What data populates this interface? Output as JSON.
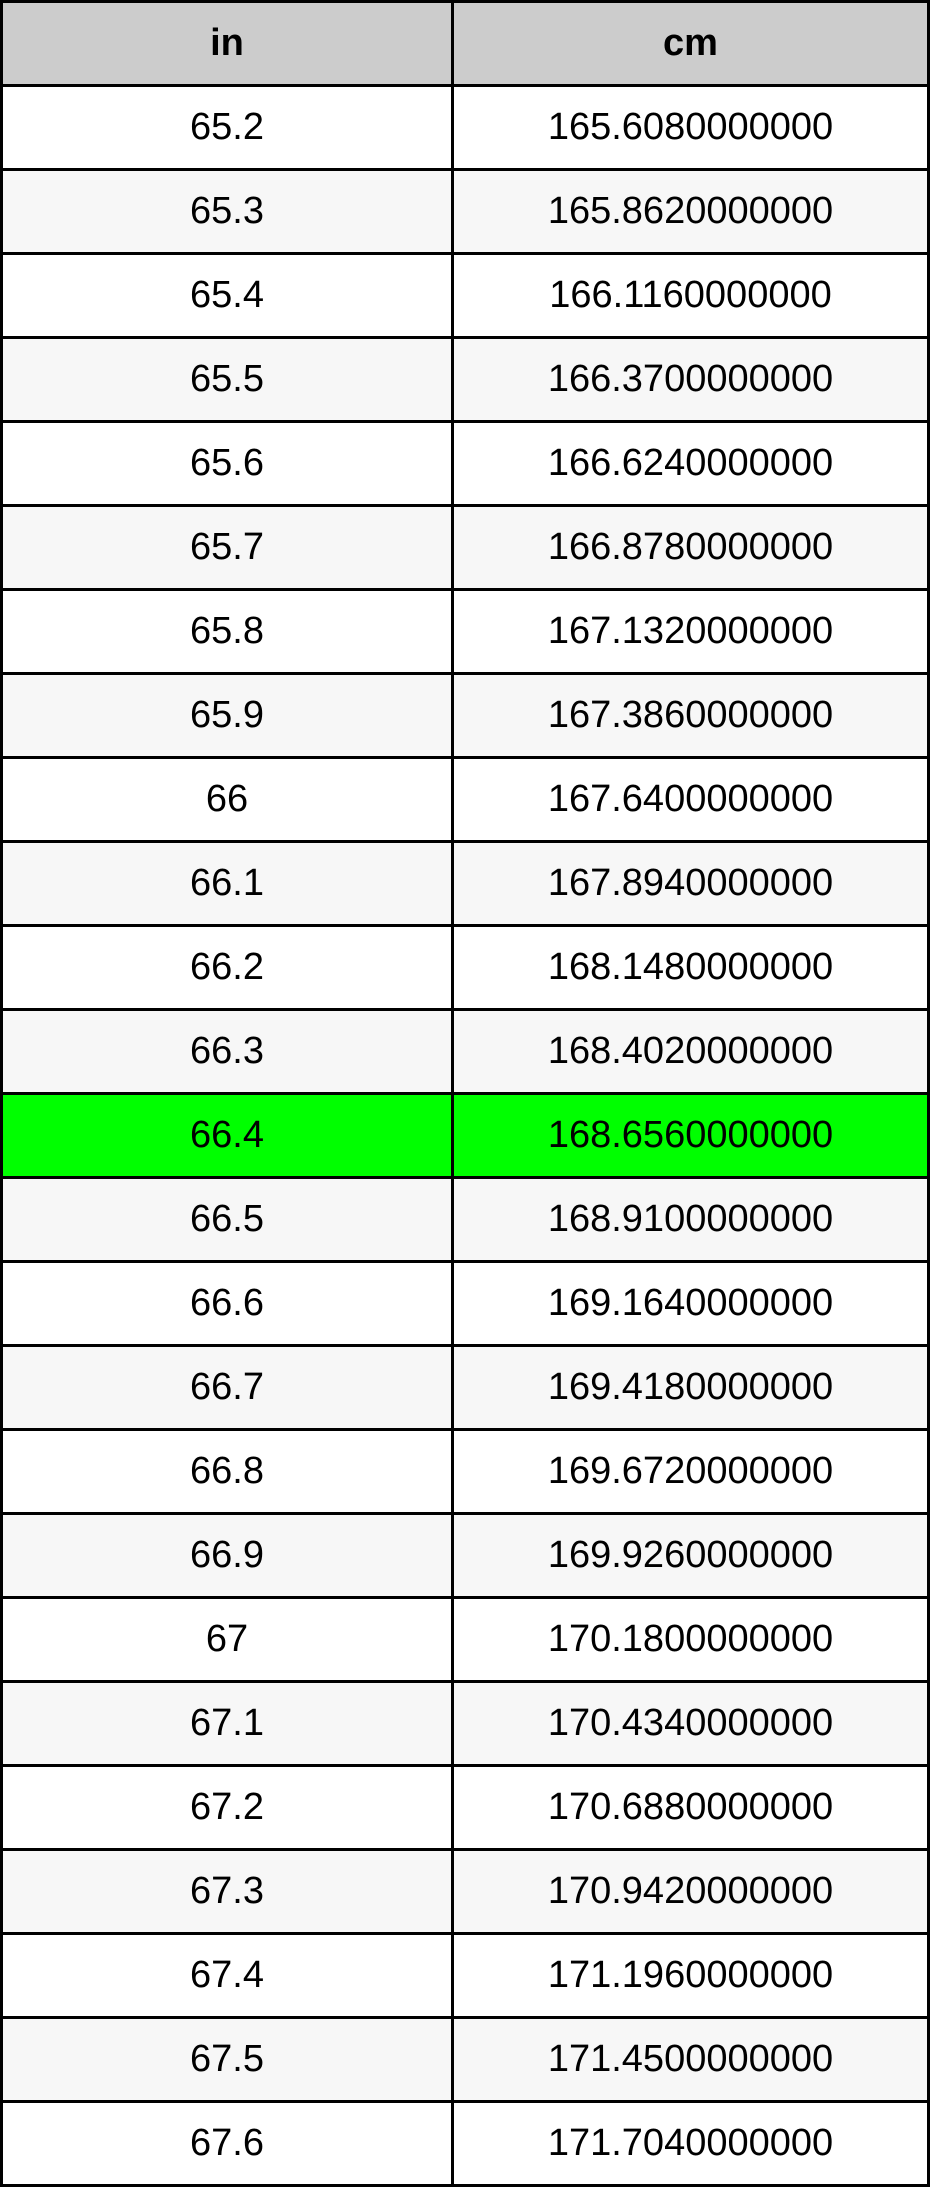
{
  "table": {
    "headers": [
      "in",
      "cm"
    ],
    "highlight_color": "#00ff00",
    "highlighted_row": 12,
    "rows": [
      [
        "65.2",
        "165.6080000000"
      ],
      [
        "65.3",
        "165.8620000000"
      ],
      [
        "65.4",
        "166.1160000000"
      ],
      [
        "65.5",
        "166.3700000000"
      ],
      [
        "65.6",
        "166.6240000000"
      ],
      [
        "65.7",
        "166.8780000000"
      ],
      [
        "65.8",
        "167.1320000000"
      ],
      [
        "65.9",
        "167.3860000000"
      ],
      [
        "66",
        "167.6400000000"
      ],
      [
        "66.1",
        "167.8940000000"
      ],
      [
        "66.2",
        "168.1480000000"
      ],
      [
        "66.3",
        "168.4020000000"
      ],
      [
        "66.4",
        "168.6560000000"
      ],
      [
        "66.5",
        "168.9100000000"
      ],
      [
        "66.6",
        "169.1640000000"
      ],
      [
        "66.7",
        "169.4180000000"
      ],
      [
        "66.8",
        "169.6720000000"
      ],
      [
        "66.9",
        "169.9260000000"
      ],
      [
        "67",
        "170.1800000000"
      ],
      [
        "67.1",
        "170.4340000000"
      ],
      [
        "67.2",
        "170.6880000000"
      ],
      [
        "67.3",
        "170.9420000000"
      ],
      [
        "67.4",
        "171.1960000000"
      ],
      [
        "67.5",
        "171.4500000000"
      ],
      [
        "67.6",
        "171.7040000000"
      ]
    ]
  }
}
